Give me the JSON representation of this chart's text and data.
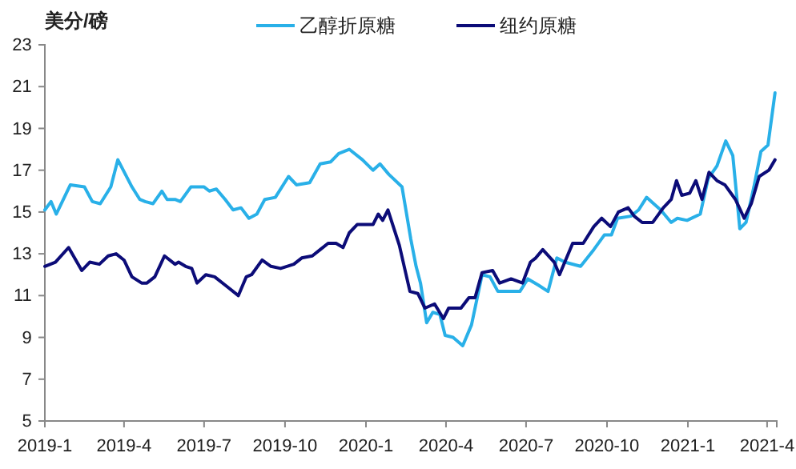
{
  "chart_data": {
    "type": "line",
    "ylabel": "美分/磅",
    "legend": "top",
    "grid": false,
    "marker": "none",
    "line_style": "solid",
    "xlim": [
      "2019-01-01",
      "2021-04-12"
    ],
    "xticks": [
      {
        "value": "2019-01-01",
        "label": "2019-1"
      },
      {
        "value": "2019-04-01",
        "label": "2019-4"
      },
      {
        "value": "2019-07-01",
        "label": "2019-7"
      },
      {
        "value": "2019-10-01",
        "label": "2019-10"
      },
      {
        "value": "2020-01-01",
        "label": "2020-1"
      },
      {
        "value": "2020-04-01",
        "label": "2020-4"
      },
      {
        "value": "2020-07-01",
        "label": "2020-7"
      },
      {
        "value": "2020-10-01",
        "label": "2020-10"
      },
      {
        "value": "2021-01-01",
        "label": "2021-1"
      },
      {
        "value": "2021-04-01",
        "label": "2021-4"
      }
    ],
    "ylim": [
      5,
      23
    ],
    "yticks": [
      5,
      7,
      9,
      11,
      13,
      15,
      17,
      19,
      21,
      23
    ],
    "series": [
      {
        "name": "乙醇折原糖",
        "color": "#29b0e8",
        "x": [
          "2019-01-01",
          "2019-01-08",
          "2019-01-14",
          "2019-01-30",
          "2019-02-15",
          "2019-02-24",
          "2019-03-05",
          "2019-03-17",
          "2019-03-25",
          "2019-04-10",
          "2019-04-19",
          "2019-04-25",
          "2019-05-04",
          "2019-05-14",
          "2019-05-20",
          "2019-05-29",
          "2019-06-04",
          "2019-06-16",
          "2019-07-01",
          "2019-07-07",
          "2019-07-15",
          "2019-07-25",
          "2019-08-03",
          "2019-08-12",
          "2019-08-21",
          "2019-08-30",
          "2019-09-08",
          "2019-09-20",
          "2019-10-05",
          "2019-10-14",
          "2019-10-29",
          "2019-11-10",
          "2019-11-22",
          "2019-12-01",
          "2019-12-13",
          "2019-12-28",
          "2020-01-09",
          "2020-01-17",
          "2020-01-27",
          "2020-02-11",
          "2020-02-21",
          "2020-02-27",
          "2020-03-03",
          "2020-03-10",
          "2020-03-17",
          "2020-03-25",
          "2020-03-31",
          "2020-04-09",
          "2020-04-20",
          "2020-04-30",
          "2020-05-12",
          "2020-05-21",
          "2020-05-30",
          "2020-06-12",
          "2020-06-24",
          "2020-07-03",
          "2020-07-15",
          "2020-07-26",
          "2020-08-05",
          "2020-08-14",
          "2020-09-01",
          "2020-09-16",
          "2020-09-28",
          "2020-10-06",
          "2020-10-13",
          "2020-10-28",
          "2020-11-06",
          "2020-11-15",
          "2020-12-01",
          "2020-12-13",
          "2020-12-20",
          "2020-12-31",
          "2021-01-15",
          "2021-01-24",
          "2021-02-03",
          "2021-02-13",
          "2021-02-21",
          "2021-03-01",
          "2021-03-08",
          "2021-03-17",
          "2021-03-25",
          "2021-04-02",
          "2021-04-10"
        ],
        "values": [
          15.1,
          15.5,
          14.9,
          16.3,
          16.2,
          15.5,
          15.4,
          16.2,
          17.5,
          16.2,
          15.6,
          15.5,
          15.4,
          16.0,
          15.6,
          15.6,
          15.5,
          16.2,
          16.2,
          16.0,
          16.1,
          15.6,
          15.1,
          15.2,
          14.7,
          14.9,
          15.6,
          15.7,
          16.7,
          16.3,
          16.4,
          17.3,
          17.4,
          17.8,
          18.0,
          17.5,
          17.0,
          17.3,
          16.8,
          16.2,
          13.7,
          12.4,
          11.6,
          9.7,
          10.2,
          10.1,
          9.1,
          9.0,
          8.6,
          9.6,
          12.0,
          11.9,
          11.2,
          11.2,
          11.2,
          11.8,
          11.5,
          11.2,
          12.8,
          12.6,
          12.4,
          13.2,
          13.9,
          13.9,
          14.7,
          14.8,
          15.1,
          15.7,
          15.1,
          14.5,
          14.7,
          14.6,
          14.9,
          16.6,
          17.2,
          18.4,
          17.7,
          14.2,
          14.5,
          16.2,
          17.9,
          18.2,
          20.7
        ]
      },
      {
        "name": "纽约原糖",
        "color": "#0c0c78",
        "x": [
          "2019-01-01",
          "2019-01-13",
          "2019-01-28",
          "2019-02-12",
          "2019-02-21",
          "2019-03-04",
          "2019-03-14",
          "2019-03-23",
          "2019-04-01",
          "2019-04-10",
          "2019-04-21",
          "2019-04-27",
          "2019-05-06",
          "2019-05-17",
          "2019-05-29",
          "2019-06-02",
          "2019-06-10",
          "2019-06-17",
          "2019-06-23",
          "2019-07-03",
          "2019-07-13",
          "2019-07-25",
          "2019-08-09",
          "2019-08-18",
          "2019-08-24",
          "2019-09-05",
          "2019-09-15",
          "2019-09-26",
          "2019-10-11",
          "2019-10-20",
          "2019-11-01",
          "2019-11-10",
          "2019-11-19",
          "2019-11-28",
          "2019-12-06",
          "2019-12-13",
          "2019-12-22",
          "2019-12-30",
          "2020-01-09",
          "2020-01-15",
          "2020-01-20",
          "2020-01-26",
          "2020-02-08",
          "2020-02-20",
          "2020-02-29",
          "2020-03-08",
          "2020-03-19",
          "2020-03-29",
          "2020-04-04",
          "2020-04-18",
          "2020-04-27",
          "2020-05-04",
          "2020-05-12",
          "2020-05-24",
          "2020-06-01",
          "2020-06-14",
          "2020-06-27",
          "2020-07-06",
          "2020-07-12",
          "2020-07-20",
          "2020-08-02",
          "2020-08-08",
          "2020-08-23",
          "2020-09-04",
          "2020-09-16",
          "2020-09-25",
          "2020-10-05",
          "2020-10-14",
          "2020-10-25",
          "2020-11-01",
          "2020-11-10",
          "2020-11-22",
          "2020-12-04",
          "2020-12-13",
          "2020-12-19",
          "2020-12-25",
          "2021-01-03",
          "2021-01-10",
          "2021-01-17",
          "2021-01-25",
          "2021-02-03",
          "2021-02-12",
          "2021-02-24",
          "2021-03-06",
          "2021-03-14",
          "2021-03-23",
          "2021-04-03",
          "2021-04-10"
        ],
        "values": [
          12.4,
          12.6,
          13.3,
          12.2,
          12.6,
          12.5,
          12.9,
          13.0,
          12.7,
          11.9,
          11.6,
          11.6,
          11.9,
          12.9,
          12.5,
          12.6,
          12.4,
          12.3,
          11.6,
          12.0,
          11.9,
          11.5,
          11.0,
          11.9,
          12.0,
          12.7,
          12.4,
          12.3,
          12.5,
          12.8,
          12.9,
          13.2,
          13.5,
          13.5,
          13.3,
          14.0,
          14.4,
          14.4,
          14.4,
          14.9,
          14.6,
          15.1,
          13.4,
          11.2,
          11.1,
          10.4,
          10.6,
          9.9,
          10.4,
          10.4,
          10.9,
          10.9,
          12.1,
          12.2,
          11.6,
          11.8,
          11.6,
          12.6,
          12.8,
          13.2,
          12.6,
          12.0,
          13.5,
          13.5,
          14.3,
          14.7,
          14.3,
          15.0,
          15.2,
          14.8,
          14.5,
          14.5,
          15.2,
          15.6,
          16.5,
          15.8,
          15.9,
          16.5,
          15.6,
          16.9,
          16.5,
          16.3,
          15.6,
          14.7,
          15.4,
          16.7,
          17.0,
          17.5
        ]
      }
    ]
  }
}
